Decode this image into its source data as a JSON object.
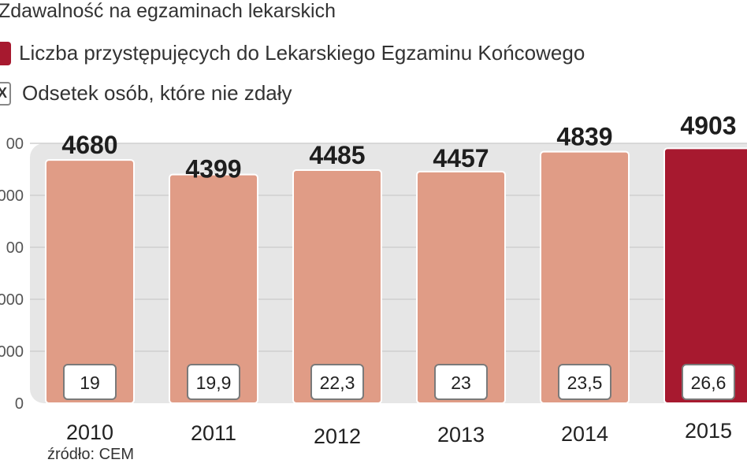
{
  "title": "Zdawalność na egzaminach lekarskich",
  "legend": {
    "series1": "Liczba przystępujęcych do Lekarskiego Egzaminu Końcowego",
    "series2_marker": "X",
    "series2": "Odsetek osób, które nie zdały"
  },
  "source": "źródło: CEM",
  "colors": {
    "bar": "#e09c86",
    "bar_highlight": "#a7192f",
    "panel": "#e6e6e6",
    "grid": "#cfcfcf"
  },
  "chart_data": {
    "type": "bar",
    "categories": [
      "2010",
      "2011",
      "2012",
      "2013",
      "2014",
      "2015"
    ],
    "series": [
      {
        "name": "Liczba przystępujęcych do Lekarskiego Egzaminu Końcowego",
        "values": [
          4680,
          4399,
          4485,
          4457,
          4839,
          4903
        ]
      },
      {
        "name": "Odsetek osób, które nie zdały",
        "values": [
          "19",
          "19,9",
          "22,3",
          "23",
          "23,5",
          "26,6"
        ]
      }
    ],
    "value_labels": [
      "4680",
      "4399",
      "4485",
      "4457",
      "4839",
      "4903"
    ],
    "y_ticks": [
      "0",
      "000",
      "000",
      "00",
      "000",
      "00"
    ],
    "ylim": [
      0,
      5000
    ],
    "highlight_index": 5,
    "grid": true
  }
}
